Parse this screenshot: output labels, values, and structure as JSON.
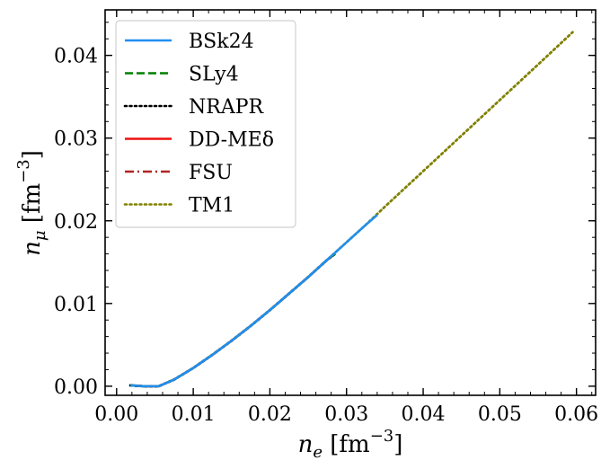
{
  "chart_data": {
    "type": "line",
    "xlabel": {
      "main": "n",
      "sub": "e",
      "unit": " [fm",
      "exp": "−3",
      "close": "]"
    },
    "ylabel": {
      "main": "n",
      "sub": "μ",
      "unit": " [fm",
      "exp": "−3",
      "close": "]"
    },
    "xlim": [
      -0.0015,
      0.0625
    ],
    "ylim": [
      -0.0011,
      0.0455
    ],
    "x_ticks": [
      0.0,
      0.01,
      0.02,
      0.03,
      0.04,
      0.05,
      0.06
    ],
    "x_tick_labels": [
      "0.00",
      "0.01",
      "0.02",
      "0.03",
      "0.04",
      "0.05",
      "0.06"
    ],
    "y_ticks": [
      0.0,
      0.01,
      0.02,
      0.03,
      0.04
    ],
    "y_tick_labels": [
      "0.00",
      "0.01",
      "0.02",
      "0.03",
      "0.04"
    ],
    "grid": false,
    "legend_position": "upper-left",
    "series": [
      {
        "name": "BSk24",
        "color": "#1f8ff0",
        "style": "solid",
        "x": [
          0.0018,
          0.0035,
          0.0055,
          0.0075,
          0.01,
          0.0125,
          0.015,
          0.0175,
          0.02,
          0.0225,
          0.025,
          0.0275,
          0.03,
          0.0325,
          0.034
        ],
        "y": [
          0.0001,
          0.0,
          0.0,
          0.0008,
          0.0022,
          0.0038,
          0.0055,
          0.0073,
          0.0092,
          0.0112,
          0.0132,
          0.0153,
          0.0174,
          0.0195,
          0.0207
        ]
      },
      {
        "name": "SLy4",
        "color": "#008000",
        "style": "dashed",
        "x": [
          0.0018,
          0.0035,
          0.0055,
          0.0075,
          0.01,
          0.0125,
          0.015,
          0.0175,
          0.02,
          0.0225,
          0.025,
          0.0275,
          0.0285
        ],
        "y": [
          0.0001,
          0.0,
          0.0,
          0.0008,
          0.0022,
          0.0038,
          0.0055,
          0.0073,
          0.0092,
          0.0112,
          0.0132,
          0.0153,
          0.016
        ]
      },
      {
        "name": "NRAPR",
        "color": "#000000",
        "style": "dotted",
        "x": [
          0.0018,
          0.0035,
          0.0055,
          0.0075,
          0.01,
          0.0125,
          0.015,
          0.0175,
          0.02,
          0.0225,
          0.025,
          0.0275,
          0.0285
        ],
        "y": [
          0.0001,
          0.0,
          0.0,
          0.0008,
          0.0022,
          0.0038,
          0.0055,
          0.0073,
          0.0092,
          0.0112,
          0.0132,
          0.0153,
          0.016
        ]
      },
      {
        "name": "DD-MEδ",
        "color": "#ee1111",
        "style": "solid",
        "x": [
          0.0018,
          0.0035,
          0.0055,
          0.0075,
          0.01,
          0.0125,
          0.015,
          0.0175,
          0.02,
          0.0225,
          0.025,
          0.0275,
          0.0285
        ],
        "y": [
          0.0001,
          0.0,
          0.0,
          0.0008,
          0.0022,
          0.0038,
          0.0055,
          0.0073,
          0.0092,
          0.0112,
          0.0132,
          0.0153,
          0.016
        ]
      },
      {
        "name": "FSU",
        "color": "#b22222",
        "style": "dashdot",
        "x": [
          0.0018,
          0.0035,
          0.0055,
          0.0075,
          0.01,
          0.0125,
          0.015,
          0.0175,
          0.02,
          0.0225,
          0.025,
          0.0275,
          0.0285
        ],
        "y": [
          0.0001,
          0.0,
          0.0,
          0.0008,
          0.0022,
          0.0038,
          0.0055,
          0.0073,
          0.0092,
          0.0112,
          0.0132,
          0.0153,
          0.016
        ]
      },
      {
        "name": "TM1",
        "color": "#808000",
        "style": "dotted",
        "x": [
          0.0018,
          0.0035,
          0.0055,
          0.0075,
          0.01,
          0.0125,
          0.015,
          0.0175,
          0.02,
          0.0225,
          0.025,
          0.0275,
          0.03,
          0.0325,
          0.035,
          0.04,
          0.045,
          0.05,
          0.055,
          0.0595
        ],
        "y": [
          0.0001,
          0.0,
          0.0,
          0.0008,
          0.0022,
          0.0038,
          0.0055,
          0.0073,
          0.0092,
          0.0112,
          0.0132,
          0.0153,
          0.0174,
          0.0195,
          0.0217,
          0.026,
          0.0303,
          0.0346,
          0.0389,
          0.0428
        ]
      }
    ]
  }
}
